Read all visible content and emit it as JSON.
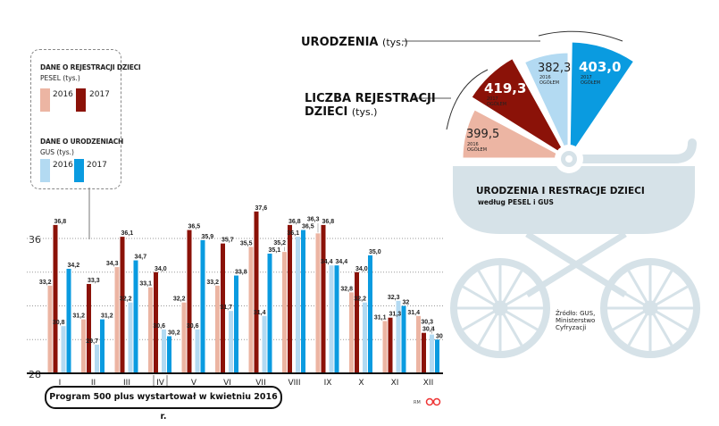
{
  "chart_data": {
    "type": "bar",
    "categories": [
      "I",
      "II",
      "III",
      "IV",
      "V",
      "VI",
      "VII",
      "VIII",
      "IX",
      "X",
      "XI",
      "XII"
    ],
    "series": [
      {
        "name": "PESEL 2016",
        "color": "#ecb5a3",
        "values": [
          33.2,
          31.2,
          34.3,
          33.1,
          32.2,
          33.2,
          35.5,
          35.2,
          36.3,
          32.8,
          31.1,
          31.4
        ]
      },
      {
        "name": "PESEL 2017",
        "color": "#8b1208",
        "values": [
          36.8,
          33.3,
          36.1,
          34.0,
          36.5,
          35.7,
          37.6,
          36.8,
          36.8,
          34.0,
          31.3,
          30.4
        ]
      },
      {
        "name": "GUS 2016",
        "color": "#b3daf2",
        "values": [
          30.8,
          29.7,
          32.2,
          30.6,
          30.6,
          31.7,
          31.4,
          36.1,
          34.4,
          32.2,
          32.3,
          30.3
        ]
      },
      {
        "name": "GUS 2017",
        "color": "#0a9be0",
        "values": [
          34.2,
          31.2,
          34.7,
          30.2,
          35.9,
          33.8,
          35.1,
          36.5,
          34.4,
          35.0,
          32,
          30
        ]
      }
    ],
    "value_labels": [
      [
        "33,2",
        "31,2",
        "34,3",
        "33,1",
        "32,2",
        "33,2",
        "35,5",
        "35,2",
        "36,3",
        "32,8",
        "31,1",
        "31,4"
      ],
      [
        "36,8",
        "33,3",
        "36,1",
        "34,0",
        "36,5",
        "35,7",
        "37,6",
        "36,8",
        "36,8",
        "34,0",
        "31,3",
        "30,4"
      ],
      [
        "30,8",
        "29,7",
        "32,2",
        "30,6",
        "30,6",
        "31,7",
        "31,4",
        "36,1",
        "34,4",
        "32,2",
        "32,3",
        "30,3"
      ],
      [
        "34,2",
        "31,2",
        "34,7",
        "30,2",
        "35,9",
        "33,8",
        "35,1",
        "36,5",
        "34,4",
        "35,0",
        "32",
        "30"
      ]
    ],
    "ylim": [
      28,
      38
    ],
    "yticks": [
      "28",
      "36"
    ],
    "grid": true,
    "legend": {
      "pesel_title": "DANE O REJESTRACJI DZIECI",
      "pesel_sub": "PESEL (tys.)",
      "gus_title": "DANE O URODZENIACH",
      "gus_sub": "GUS (tys.)",
      "y2016": "2016",
      "y2017": "2017"
    }
  },
  "note": "Program 500 plus wystartował w kwietniu 2016 r.",
  "credit": "RM",
  "pram": {
    "title": "URODZENIA I RESTRACJE DZIECI",
    "subtitle": "według PESEL i GUS",
    "births_label": "URODZENIA",
    "births_unit": "(tys.)",
    "reg_label_1": "LICZBA REJESTRACJI",
    "reg_label_2": "DZIECI",
    "reg_unit": "(tys.)",
    "segments": [
      {
        "value": "399,5",
        "year": "2016",
        "total": "OGÓŁEM",
        "color": "#ecb5a3"
      },
      {
        "value": "419,3",
        "year": "2017",
        "total": "OGÓŁEM",
        "color": "#8b1208"
      },
      {
        "value": "382,3",
        "year": "2016",
        "total": "OGÓŁEM",
        "color": "#b3daf2"
      },
      {
        "value": "403,0",
        "year": "2017",
        "total": "OGÓŁEM",
        "color": "#0a9be0"
      }
    ],
    "source": [
      "Źródło: GUS,",
      "Ministerstwo",
      "Cyfryzacji"
    ]
  },
  "colors": {
    "pram": "#d6e2e8"
  }
}
